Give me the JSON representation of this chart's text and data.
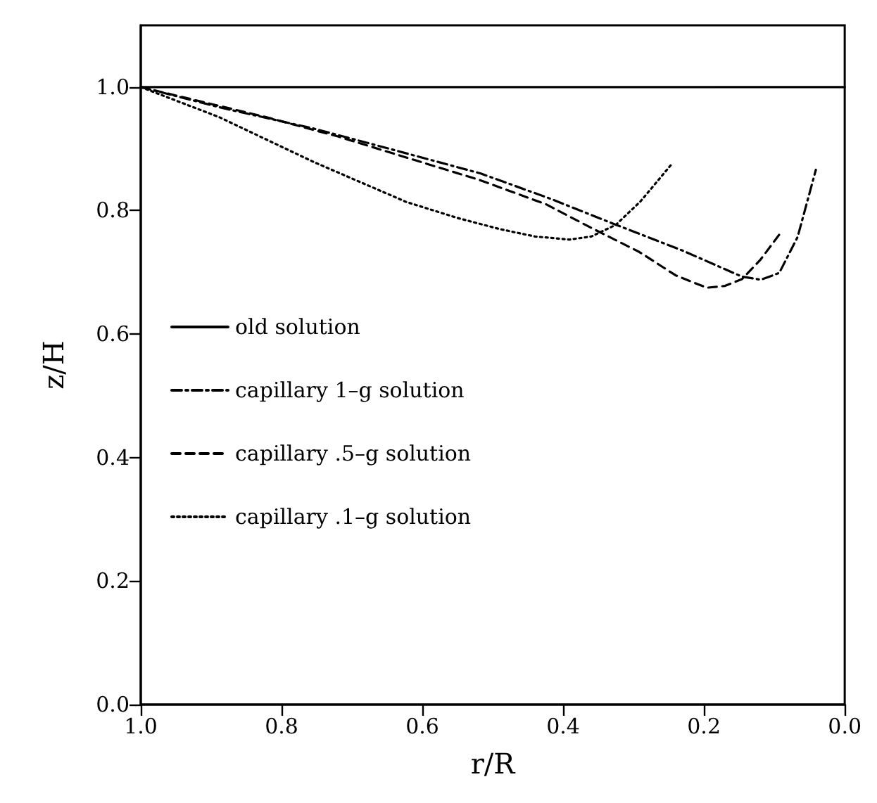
{
  "chart_data": {
    "type": "line",
    "xlabel": "r/R",
    "ylabel": "z/H",
    "xlim": [
      1,
      0
    ],
    "ylim": [
      0,
      1.1
    ],
    "xticks": [
      {
        "value": 1,
        "label": "1.0"
      },
      {
        "value": 0.8,
        "label": "0.8"
      },
      {
        "value": 0.6,
        "label": "0.6"
      },
      {
        "value": 0.4,
        "label": "0.4"
      },
      {
        "value": 0.2,
        "label": "0.2"
      },
      {
        "value": 0,
        "label": "0.0"
      }
    ],
    "yticks": [
      {
        "value": 0,
        "label": "0.0"
      },
      {
        "value": 0.2,
        "label": "0.2"
      },
      {
        "value": 0.4,
        "label": "0.4"
      },
      {
        "value": 0.6,
        "label": "0.6"
      },
      {
        "value": 0.8,
        "label": "0.8"
      },
      {
        "value": 1,
        "label": "1.0"
      }
    ],
    "grid": false,
    "legend": "left",
    "marker": "none",
    "series": [
      {
        "name": "old solution",
        "color": "#000000",
        "line_style": "solid",
        "x": [
          1,
          0
        ],
        "values": [
          1,
          1
        ]
      },
      {
        "name": "capillary 1–g solution",
        "color": "#000000",
        "line_style": "dashdot",
        "x": [
          1,
          0.88,
          0.755,
          0.64,
          0.517,
          0.42,
          0.325,
          0.23,
          0.146,
          0.119,
          0.093,
          0.067,
          0.041
        ],
        "values": [
          1,
          0.965,
          0.933,
          0.898,
          0.86,
          0.82,
          0.777,
          0.735,
          0.693,
          0.688,
          0.699,
          0.757,
          0.866
        ]
      },
      {
        "name": "capillary .5–g solution",
        "color": "#000000",
        "line_style": "dashed",
        "x": [
          1,
          0.821,
          0.72,
          0.623,
          0.52,
          0.424,
          0.36,
          0.292,
          0.24,
          0.196,
          0.17,
          0.146,
          0.12,
          0.093
        ],
        "values": [
          1,
          0.951,
          0.92,
          0.886,
          0.85,
          0.81,
          0.772,
          0.733,
          0.695,
          0.675,
          0.678,
          0.689,
          0.72,
          0.761
        ]
      },
      {
        "name": "capillary .1–g solution",
        "color": "#000000",
        "line_style": "dotted",
        "x": [
          1,
          0.888,
          0.755,
          0.623,
          0.55,
          0.49,
          0.44,
          0.391,
          0.36,
          0.325,
          0.29,
          0.246
        ],
        "values": [
          1,
          0.951,
          0.879,
          0.814,
          0.788,
          0.77,
          0.758,
          0.753,
          0.758,
          0.777,
          0.815,
          0.875
        ]
      }
    ]
  }
}
